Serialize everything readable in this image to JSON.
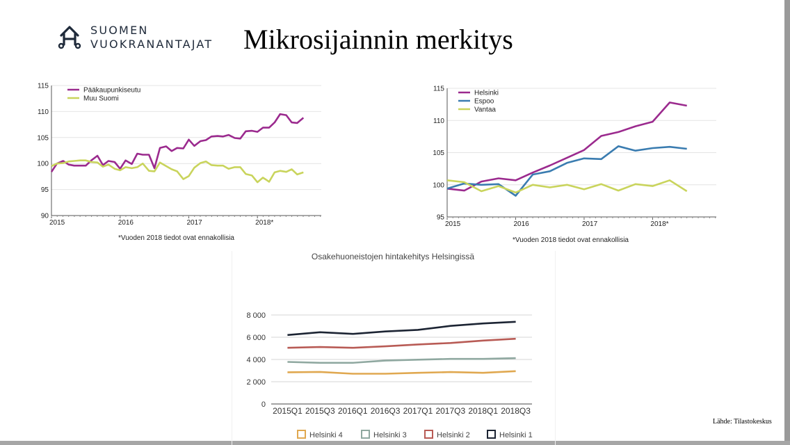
{
  "header": {
    "logo_line1": "SUOMEN",
    "logo_line2": "VUOKRANANTAJAT",
    "title": "Mikrosijainnin merkitys",
    "logo_icon": "house-keys-icon"
  },
  "footer": {
    "source": "Lähde: Tilastokeskus"
  },
  "chart_data": [
    {
      "type": "line",
      "title": "",
      "ylim": [
        90,
        115
      ],
      "yticks": [
        90,
        95,
        100,
        105,
        110,
        115
      ],
      "xlim": [
        2015,
        2018.93
      ],
      "xticks": [
        {
          "value": 2015,
          "label": "2015"
        },
        {
          "value": 2016,
          "label": "2016"
        },
        {
          "value": 2017,
          "label": "2017"
        },
        {
          "value": 2018,
          "label": "2018*"
        }
      ],
      "legend_placement": "top-left",
      "grid": "horizontal",
      "note": "*Vuoden 2018 tiedot ovat ennakollisia",
      "series": [
        {
          "name": "Pääkaupunkiseutu",
          "color": "#9b2a8e",
          "points": [
            [
              2015.0,
              98.4
            ],
            [
              2015.08,
              100.0
            ],
            [
              2015.17,
              100.5
            ],
            [
              2015.25,
              99.8
            ],
            [
              2015.33,
              99.6
            ],
            [
              2015.42,
              99.6
            ],
            [
              2015.5,
              99.6
            ],
            [
              2015.58,
              100.6
            ],
            [
              2015.67,
              101.5
            ],
            [
              2015.75,
              99.7
            ],
            [
              2015.83,
              100.5
            ],
            [
              2015.92,
              100.3
            ],
            [
              2016.0,
              99.0
            ],
            [
              2016.08,
              100.6
            ],
            [
              2016.17,
              99.9
            ],
            [
              2016.25,
              101.9
            ],
            [
              2016.33,
              101.7
            ],
            [
              2016.42,
              101.7
            ],
            [
              2016.5,
              99.1
            ],
            [
              2016.58,
              103.0
            ],
            [
              2016.67,
              103.3
            ],
            [
              2016.75,
              102.4
            ],
            [
              2016.83,
              103.0
            ],
            [
              2016.92,
              102.9
            ],
            [
              2017.0,
              104.6
            ],
            [
              2017.08,
              103.4
            ],
            [
              2017.17,
              104.3
            ],
            [
              2017.25,
              104.5
            ],
            [
              2017.33,
              105.2
            ],
            [
              2017.42,
              105.3
            ],
            [
              2017.5,
              105.2
            ],
            [
              2017.58,
              105.5
            ],
            [
              2017.67,
              104.9
            ],
            [
              2017.75,
              104.8
            ],
            [
              2017.83,
              106.2
            ],
            [
              2017.92,
              106.3
            ],
            [
              2018.0,
              106.1
            ],
            [
              2018.08,
              106.9
            ],
            [
              2018.17,
              106.9
            ],
            [
              2018.25,
              107.9
            ],
            [
              2018.33,
              109.5
            ],
            [
              2018.42,
              109.3
            ],
            [
              2018.5,
              107.9
            ],
            [
              2018.58,
              107.8
            ],
            [
              2018.67,
              108.8
            ]
          ]
        },
        {
          "name": "Muu Suomi",
          "color": "#c9d45c",
          "points": [
            [
              2015.0,
              99.5
            ],
            [
              2015.08,
              100.0
            ],
            [
              2015.17,
              100.1
            ],
            [
              2015.25,
              100.4
            ],
            [
              2015.33,
              100.5
            ],
            [
              2015.42,
              100.6
            ],
            [
              2015.5,
              100.6
            ],
            [
              2015.58,
              100.3
            ],
            [
              2015.67,
              100.2
            ],
            [
              2015.75,
              99.4
            ],
            [
              2015.83,
              99.8
            ],
            [
              2015.92,
              99.0
            ],
            [
              2016.0,
              98.7
            ],
            [
              2016.08,
              99.3
            ],
            [
              2016.17,
              99.1
            ],
            [
              2016.25,
              99.3
            ],
            [
              2016.33,
              100.0
            ],
            [
              2016.42,
              98.6
            ],
            [
              2016.5,
              98.5
            ],
            [
              2016.58,
              100.2
            ],
            [
              2016.67,
              99.5
            ],
            [
              2016.75,
              98.9
            ],
            [
              2016.83,
              98.5
            ],
            [
              2016.92,
              97.0
            ],
            [
              2017.0,
              97.6
            ],
            [
              2017.08,
              99.2
            ],
            [
              2017.17,
              100.1
            ],
            [
              2017.25,
              100.4
            ],
            [
              2017.33,
              99.7
            ],
            [
              2017.42,
              99.6
            ],
            [
              2017.5,
              99.6
            ],
            [
              2017.58,
              99.0
            ],
            [
              2017.67,
              99.3
            ],
            [
              2017.75,
              99.3
            ],
            [
              2017.83,
              98.0
            ],
            [
              2017.92,
              97.7
            ],
            [
              2018.0,
              96.4
            ],
            [
              2018.08,
              97.3
            ],
            [
              2018.17,
              96.5
            ],
            [
              2018.25,
              98.3
            ],
            [
              2018.33,
              98.6
            ],
            [
              2018.42,
              98.4
            ],
            [
              2018.5,
              98.9
            ],
            [
              2018.58,
              97.9
            ],
            [
              2018.67,
              98.3
            ]
          ]
        }
      ]
    },
    {
      "type": "line",
      "title": "",
      "ylim": [
        95,
        115
      ],
      "yticks": [
        95,
        100,
        105,
        110,
        115
      ],
      "xlim": [
        2015,
        2018.93
      ],
      "xticks": [
        {
          "value": 2015,
          "label": "2015"
        },
        {
          "value": 2016,
          "label": "2016"
        },
        {
          "value": 2017,
          "label": "2017"
        },
        {
          "value": 2018,
          "label": "2018*"
        }
      ],
      "legend_placement": "top-left",
      "grid": "horizontal",
      "note": "*Vuoden 2018 tiedot ovat ennakollisia",
      "series": [
        {
          "name": "Helsinki",
          "color": "#9b2a8e",
          "points": [
            [
              2015.0,
              99.4
            ],
            [
              2015.25,
              99.1
            ],
            [
              2015.5,
              100.5
            ],
            [
              2015.75,
              101.0
            ],
            [
              2016.0,
              100.7
            ],
            [
              2016.25,
              101.9
            ],
            [
              2016.5,
              103.0
            ],
            [
              2016.75,
              104.2
            ],
            [
              2017.0,
              105.4
            ],
            [
              2017.25,
              107.6
            ],
            [
              2017.5,
              108.2
            ],
            [
              2017.75,
              109.1
            ],
            [
              2018.0,
              109.8
            ],
            [
              2018.25,
              112.8
            ],
            [
              2018.5,
              112.3
            ]
          ]
        },
        {
          "name": "Espoo",
          "color": "#3a7cb0",
          "points": [
            [
              2015.0,
              99.4
            ],
            [
              2015.25,
              100.2
            ],
            [
              2015.5,
              100.0
            ],
            [
              2015.75,
              100.1
            ],
            [
              2016.0,
              98.3
            ],
            [
              2016.25,
              101.6
            ],
            [
              2016.5,
              102.1
            ],
            [
              2016.75,
              103.4
            ],
            [
              2017.0,
              104.1
            ],
            [
              2017.25,
              104.0
            ],
            [
              2017.5,
              106.0
            ],
            [
              2017.75,
              105.3
            ],
            [
              2018.0,
              105.7
            ],
            [
              2018.25,
              105.9
            ],
            [
              2018.5,
              105.6
            ]
          ]
        },
        {
          "name": "Vantaa",
          "color": "#c9d45c",
          "points": [
            [
              2015.0,
              100.7
            ],
            [
              2015.25,
              100.4
            ],
            [
              2015.5,
              99.0
            ],
            [
              2015.75,
              99.8
            ],
            [
              2016.0,
              98.8
            ],
            [
              2016.25,
              100.0
            ],
            [
              2016.5,
              99.6
            ],
            [
              2016.75,
              100.0
            ],
            [
              2017.0,
              99.3
            ],
            [
              2017.25,
              100.1
            ],
            [
              2017.5,
              99.1
            ],
            [
              2017.75,
              100.1
            ],
            [
              2018.0,
              99.8
            ],
            [
              2018.25,
              100.7
            ],
            [
              2018.5,
              99.0
            ]
          ]
        }
      ]
    },
    {
      "type": "line",
      "title": "Osakehuoneistojen hintakehitys Helsingissä",
      "categories": [
        "2015Q1",
        "2015Q3",
        "2016Q1",
        "2016Q3",
        "2017Q1",
        "2017Q3",
        "2018Q1",
        "2018Q3"
      ],
      "ylim": [
        0,
        8000
      ],
      "yticks": [
        {
          "value": 0,
          "label": "0"
        },
        {
          "value": 2000,
          "label": "2 000"
        },
        {
          "value": 4000,
          "label": "4 000"
        },
        {
          "value": 6000,
          "label": "6 000"
        },
        {
          "value": 8000,
          "label": "8 000"
        }
      ],
      "legend_placement": "bottom",
      "grid": "horizontal",
      "series": [
        {
          "name": "Helsinki 4",
          "color": "#e0a850",
          "values": [
            2850,
            2880,
            2720,
            2720,
            2800,
            2870,
            2800,
            2950
          ]
        },
        {
          "name": "Helsinki 3",
          "color": "#8fa8a0",
          "values": [
            3780,
            3700,
            3700,
            3900,
            3980,
            4050,
            4050,
            4120
          ]
        },
        {
          "name": "Helsinki 2",
          "color": "#b85b55",
          "values": [
            5050,
            5120,
            5050,
            5180,
            5350,
            5480,
            5700,
            5860
          ]
        },
        {
          "name": "Helsinki 1",
          "color": "#1c2433",
          "values": [
            6200,
            6450,
            6300,
            6520,
            6660,
            7020,
            7240,
            7390
          ]
        }
      ]
    }
  ]
}
